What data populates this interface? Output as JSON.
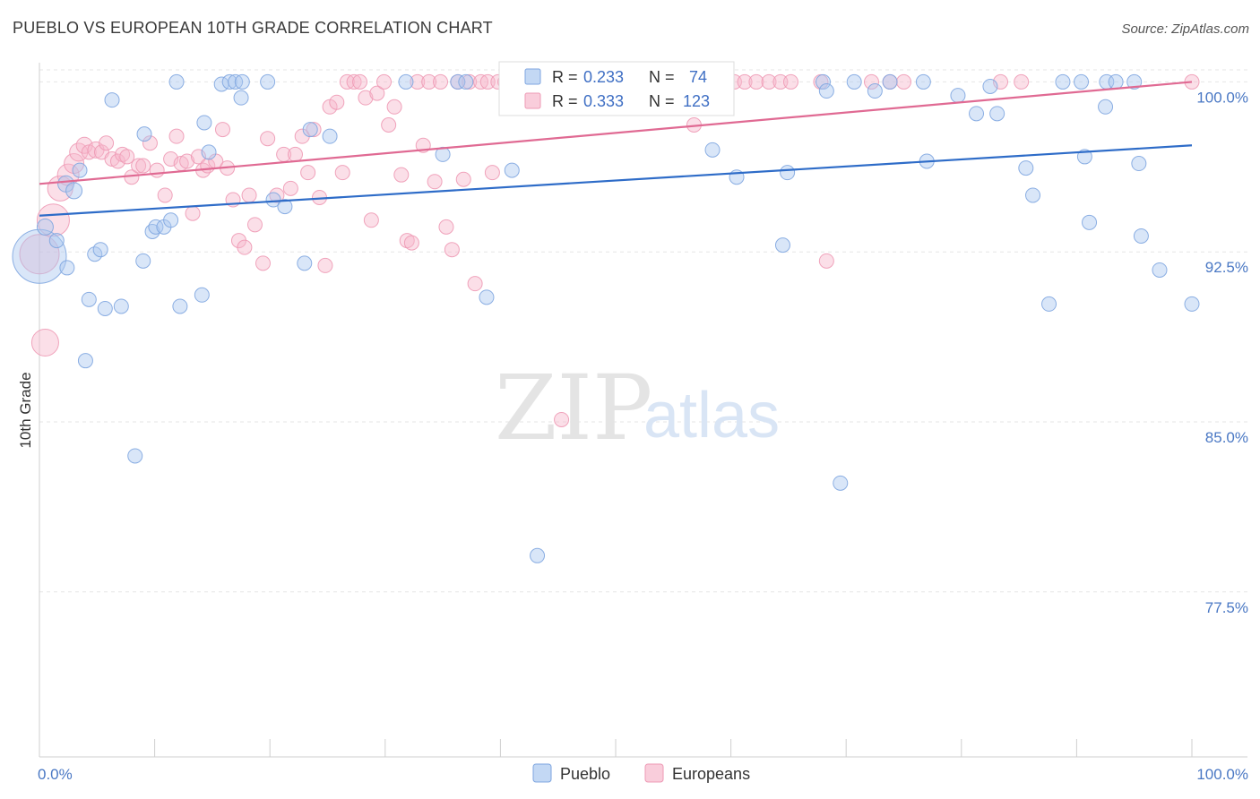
{
  "title": "PUEBLO VS EUROPEAN 10TH GRADE CORRELATION CHART",
  "source": "Source: ZipAtlas.com",
  "watermark": {
    "zip": "ZIP",
    "atlas": "atlas"
  },
  "legend": {
    "pueblo": {
      "r_label": "R = ",
      "r_value": "0.233",
      "n_label": "N = ",
      "n_value": "74"
    },
    "europeans": {
      "r_label": "R = ",
      "r_value": "0.333",
      "n_label": "N = ",
      "n_value": "123"
    }
  },
  "colors": {
    "pueblo_fill": "#aac8f0",
    "pueblo_stroke": "#7fa6e0",
    "pueblo_line": "#2e6cc8",
    "europeans_fill": "#f7b8cc",
    "europeans_stroke": "#ee9ab5",
    "europeans_line": "#e06a93",
    "grid": "#e6e6e6",
    "tick_label": "#4a78c4"
  },
  "chart_data": {
    "type": "scatter",
    "ylabel": "10th Grade",
    "xlabel": "",
    "xlim": [
      0,
      100
    ],
    "ylim": [
      70.3,
      101.4
    ],
    "x_tick_labels": [
      {
        "value": 0,
        "label": "0.0%"
      },
      {
        "value": 100,
        "label": "100.0%"
      }
    ],
    "x_minor_ticks": [
      10,
      20,
      30,
      40,
      50,
      60,
      70,
      80,
      90,
      100
    ],
    "y_ticks": [
      {
        "value": 100.0,
        "label": "100.0%"
      },
      {
        "value": 92.5,
        "label": "92.5%"
      },
      {
        "value": 85.0,
        "label": "85.0%"
      },
      {
        "value": 77.5,
        "label": "77.5%"
      }
    ],
    "grid": true,
    "legend_position": "top-center",
    "series": [
      {
        "name": "Pueblo",
        "trend": [
          [
            0,
            94.1
          ],
          [
            100,
            97.2
          ]
        ],
        "points": [
          [
            0,
            92.3,
            30
          ],
          [
            0.5,
            93.6,
            9
          ],
          [
            1.5,
            93.0,
            8
          ],
          [
            2.3,
            95.5,
            9
          ],
          [
            3,
            95.2,
            9
          ],
          [
            3.5,
            96.1,
            8
          ],
          [
            2.4,
            91.8,
            8
          ],
          [
            4.3,
            90.4,
            8
          ],
          [
            4.8,
            92.4,
            8
          ],
          [
            5.3,
            92.6,
            8
          ],
          [
            5.7,
            90.0,
            8
          ],
          [
            6.3,
            99.2,
            8
          ],
          [
            7.1,
            90.1,
            8
          ],
          [
            4,
            87.7,
            8
          ],
          [
            8.3,
            83.5,
            8
          ],
          [
            9,
            92.1,
            8
          ],
          [
            9.1,
            97.7,
            8
          ],
          [
            9.8,
            93.4,
            8
          ],
          [
            10.1,
            93.6,
            8
          ],
          [
            10.8,
            93.6,
            8
          ],
          [
            11.4,
            93.9,
            8
          ],
          [
            11.9,
            100.0,
            8
          ],
          [
            12.2,
            90.1,
            8
          ],
          [
            14.1,
            90.6,
            8
          ],
          [
            14.3,
            98.2,
            8
          ],
          [
            14.7,
            96.9,
            8
          ],
          [
            15.8,
            99.9,
            8
          ],
          [
            16.5,
            100.0,
            8
          ],
          [
            17.0,
            100.0,
            8
          ],
          [
            17.5,
            99.3,
            8
          ],
          [
            17.6,
            100.0,
            8
          ],
          [
            19.8,
            100.0,
            8
          ],
          [
            20.3,
            94.8,
            8
          ],
          [
            21.3,
            94.5,
            8
          ],
          [
            23.0,
            92.0,
            8
          ],
          [
            23.5,
            97.9,
            8
          ],
          [
            25.2,
            97.6,
            8
          ],
          [
            31.8,
            100.0,
            8
          ],
          [
            35.0,
            96.8,
            8
          ],
          [
            36.3,
            100.0,
            8
          ],
          [
            37.0,
            100.0,
            8
          ],
          [
            38.8,
            90.5,
            8
          ],
          [
            41.0,
            96.1,
            8
          ],
          [
            43.2,
            79.1,
            8
          ],
          [
            50.2,
            100.0,
            8
          ],
          [
            58.4,
            97.0,
            8
          ],
          [
            60.5,
            95.8,
            8
          ],
          [
            64.5,
            92.8,
            8
          ],
          [
            64.9,
            96.0,
            8
          ],
          [
            68.0,
            100.0,
            8
          ],
          [
            68.3,
            99.6,
            8
          ],
          [
            69.5,
            82.3,
            8
          ],
          [
            70.7,
            100.0,
            8
          ],
          [
            72.5,
            99.6,
            8
          ],
          [
            73.8,
            100.0,
            8
          ],
          [
            76.7,
            100.0,
            8
          ],
          [
            77.0,
            96.5,
            8
          ],
          [
            79.7,
            99.4,
            8
          ],
          [
            81.3,
            98.6,
            8
          ],
          [
            82.5,
            99.8,
            8
          ],
          [
            83.1,
            98.6,
            8
          ],
          [
            85.6,
            96.2,
            8
          ],
          [
            86.2,
            95.0,
            8
          ],
          [
            87.6,
            90.2,
            8
          ],
          [
            88.8,
            100.0,
            8
          ],
          [
            90.4,
            100.0,
            8
          ],
          [
            90.7,
            96.7,
            8
          ],
          [
            91.1,
            93.8,
            8
          ],
          [
            92.5,
            98.9,
            8
          ],
          [
            92.6,
            100.0,
            8
          ],
          [
            93.4,
            100.0,
            8
          ],
          [
            95.0,
            100.0,
            8
          ],
          [
            95.4,
            96.4,
            8
          ],
          [
            95.6,
            93.2,
            8
          ],
          [
            97.2,
            91.7,
            8
          ],
          [
            100,
            90.2,
            8
          ]
        ]
      },
      {
        "name": "Europeans",
        "trend": [
          [
            0,
            95.5
          ],
          [
            100,
            100.0
          ]
        ],
        "points": [
          [
            0,
            92.4,
            22
          ],
          [
            0.5,
            88.5,
            15
          ],
          [
            1.2,
            93.9,
            18
          ],
          [
            1.8,
            95.3,
            14
          ],
          [
            2.5,
            95.9,
            12
          ],
          [
            3.0,
            96.4,
            11
          ],
          [
            3.4,
            96.9,
            10
          ],
          [
            3.9,
            97.2,
            9
          ],
          [
            4.3,
            96.9,
            8
          ],
          [
            4.9,
            97.0,
            9
          ],
          [
            5.4,
            96.9,
            8
          ],
          [
            5.8,
            97.3,
            8
          ],
          [
            6.3,
            96.6,
            8
          ],
          [
            6.8,
            96.5,
            8
          ],
          [
            7.2,
            96.8,
            8
          ],
          [
            7.6,
            96.7,
            8
          ],
          [
            8.0,
            95.8,
            8
          ],
          [
            8.6,
            96.3,
            8
          ],
          [
            9.0,
            96.3,
            8
          ],
          [
            9.6,
            97.3,
            8
          ],
          [
            10.2,
            96.1,
            8
          ],
          [
            10.9,
            95.0,
            8
          ],
          [
            11.4,
            96.6,
            8
          ],
          [
            11.9,
            97.6,
            8
          ],
          [
            12.3,
            96.4,
            8
          ],
          [
            12.8,
            96.5,
            8
          ],
          [
            13.3,
            94.2,
            8
          ],
          [
            13.8,
            96.7,
            8
          ],
          [
            14.2,
            96.1,
            8
          ],
          [
            14.6,
            96.3,
            8
          ],
          [
            15.3,
            96.5,
            8
          ],
          [
            15.9,
            97.9,
            8
          ],
          [
            16.3,
            96.2,
            8
          ],
          [
            16.8,
            94.8,
            8
          ],
          [
            17.3,
            93.0,
            8
          ],
          [
            17.8,
            92.7,
            8
          ],
          [
            18.2,
            95.0,
            8
          ],
          [
            18.7,
            93.7,
            8
          ],
          [
            19.4,
            92.0,
            8
          ],
          [
            19.8,
            97.5,
            8
          ],
          [
            20.6,
            95.0,
            8
          ],
          [
            21.2,
            96.8,
            8
          ],
          [
            21.8,
            95.3,
            8
          ],
          [
            22.2,
            96.8,
            8
          ],
          [
            22.8,
            97.6,
            8
          ],
          [
            23.3,
            96.0,
            8
          ],
          [
            23.8,
            97.9,
            8
          ],
          [
            24.3,
            94.9,
            8
          ],
          [
            24.8,
            91.9,
            8
          ],
          [
            25.2,
            98.9,
            8
          ],
          [
            25.8,
            99.1,
            8
          ],
          [
            26.3,
            96.0,
            8
          ],
          [
            26.7,
            100.0,
            8
          ],
          [
            27.3,
            100.0,
            8
          ],
          [
            27.8,
            100.0,
            8
          ],
          [
            28.3,
            99.3,
            8
          ],
          [
            28.8,
            93.9,
            8
          ],
          [
            29.3,
            99.5,
            8
          ],
          [
            29.9,
            100.0,
            8
          ],
          [
            30.3,
            98.1,
            8
          ],
          [
            30.8,
            98.9,
            8
          ],
          [
            31.4,
            95.9,
            8
          ],
          [
            31.9,
            93.0,
            8
          ],
          [
            32.3,
            92.9,
            8
          ],
          [
            32.8,
            100.0,
            8
          ],
          [
            33.3,
            97.2,
            8
          ],
          [
            33.8,
            100.0,
            8
          ],
          [
            34.3,
            95.6,
            8
          ],
          [
            34.8,
            100.0,
            8
          ],
          [
            35.3,
            93.6,
            8
          ],
          [
            35.8,
            92.6,
            8
          ],
          [
            36.3,
            100.0,
            8
          ],
          [
            36.8,
            95.7,
            8
          ],
          [
            37.3,
            100.0,
            8
          ],
          [
            37.8,
            91.1,
            8
          ],
          [
            38.3,
            100.0,
            8
          ],
          [
            38.9,
            100.0,
            8
          ],
          [
            39.3,
            96.0,
            8
          ],
          [
            39.8,
            100.0,
            8
          ],
          [
            40.4,
            100.0,
            8
          ],
          [
            40.9,
            100.0,
            8
          ],
          [
            41.4,
            100.0,
            8
          ],
          [
            41.9,
            100.0,
            8
          ],
          [
            42.4,
            100.0,
            8
          ],
          [
            42.9,
            100.0,
            8
          ],
          [
            43.4,
            100.0,
            8
          ],
          [
            43.9,
            100.0,
            8
          ],
          [
            44.4,
            100.0,
            8
          ],
          [
            44.9,
            100.0,
            8
          ],
          [
            45.3,
            85.1,
            8
          ],
          [
            45.9,
            100.0,
            8
          ],
          [
            46.4,
            100.0,
            8
          ],
          [
            46.9,
            100.0,
            8
          ],
          [
            47.4,
            100.0,
            8
          ],
          [
            47.9,
            100.0,
            8
          ],
          [
            48.5,
            100.0,
            8
          ],
          [
            49.5,
            100.0,
            8
          ],
          [
            50.5,
            100.0,
            8
          ],
          [
            52.0,
            100.0,
            8
          ],
          [
            53.3,
            100.0,
            8
          ],
          [
            54.3,
            100.0,
            8
          ],
          [
            55.2,
            100.0,
            8
          ],
          [
            56.2,
            100.0,
            8
          ],
          [
            56.8,
            98.1,
            8
          ],
          [
            57.5,
            100.0,
            8
          ],
          [
            58.3,
            100.0,
            8
          ],
          [
            60.3,
            100.0,
            8
          ],
          [
            61.2,
            100.0,
            8
          ],
          [
            62.2,
            100.0,
            8
          ],
          [
            63.3,
            100.0,
            8
          ],
          [
            64.3,
            100.0,
            8
          ],
          [
            65.2,
            100.0,
            8
          ],
          [
            67.8,
            100.0,
            8
          ],
          [
            68.3,
            92.1,
            8
          ],
          [
            72.2,
            100.0,
            8
          ],
          [
            73.8,
            100.0,
            8
          ],
          [
            75.0,
            100.0,
            8
          ],
          [
            83.4,
            100.0,
            8
          ],
          [
            85.2,
            100.0,
            8
          ],
          [
            100,
            100.0,
            8
          ]
        ]
      }
    ]
  }
}
